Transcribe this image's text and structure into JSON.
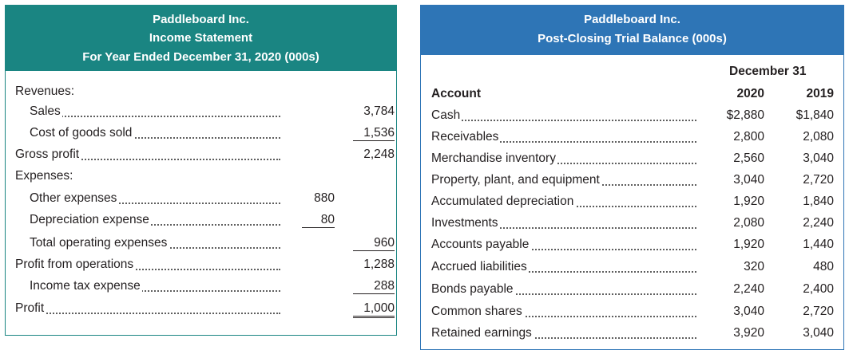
{
  "income_statement": {
    "company": "Paddleboard Inc.",
    "title": "Income Statement",
    "period": "For Year Ended December 31, 2020 (000s)",
    "rows": [
      {
        "label": "Revenues:",
        "c1": "",
        "c2": ""
      },
      {
        "label": "Sales",
        "c1": "",
        "c2": "3,784"
      },
      {
        "label": "Cost of goods sold",
        "c1": "",
        "c2": "1,536"
      },
      {
        "label": "Gross profit",
        "c1": "",
        "c2": "2,248"
      },
      {
        "label": "Expenses:",
        "c1": "",
        "c2": ""
      },
      {
        "label": "Other expenses",
        "c1": "880",
        "c2": ""
      },
      {
        "label": "Depreciation expense",
        "c1": "80",
        "c2": ""
      },
      {
        "label": "Total operating expenses",
        "c1": "",
        "c2": "960"
      },
      {
        "label": "Profit from operations",
        "c1": "",
        "c2": "1,288"
      },
      {
        "label": "Income tax expense",
        "c1": "",
        "c2": "288"
      },
      {
        "label": "Profit",
        "c1": "",
        "c2": "1,000"
      }
    ]
  },
  "trial_balance": {
    "company": "Paddleboard Inc.",
    "title": "Post-Closing Trial Balance (000s)",
    "date_header": "December 31",
    "account_header": "Account",
    "year1": "2020",
    "year2": "2019",
    "rows": [
      {
        "label": "Cash",
        "y1": "$2,880",
        "y2": "$1,840"
      },
      {
        "label": "Receivables",
        "y1": "2,800",
        "y2": "2,080"
      },
      {
        "label": "Merchandise inventory",
        "y1": "2,560",
        "y2": "3,040"
      },
      {
        "label": "Property, plant, and equipment",
        "y1": "3,040",
        "y2": "2,720"
      },
      {
        "label": "Accumulated depreciation",
        "y1": "1,920",
        "y2": "1,840"
      },
      {
        "label": "Investments",
        "y1": "2,080",
        "y2": "2,240"
      },
      {
        "label": "Accounts payable",
        "y1": "1,920",
        "y2": "1,440"
      },
      {
        "label": "Accrued liabilities",
        "y1": "320",
        "y2": "480"
      },
      {
        "label": "Bonds payable",
        "y1": "2,240",
        "y2": "2,400"
      },
      {
        "label": "Common shares",
        "y1": "3,040",
        "y2": "2,720"
      },
      {
        "label": "Retained earnings",
        "y1": "3,920",
        "y2": "3,040"
      }
    ]
  },
  "colors": {
    "income_header": "#1a8582",
    "trial_header": "#2e75b6"
  }
}
